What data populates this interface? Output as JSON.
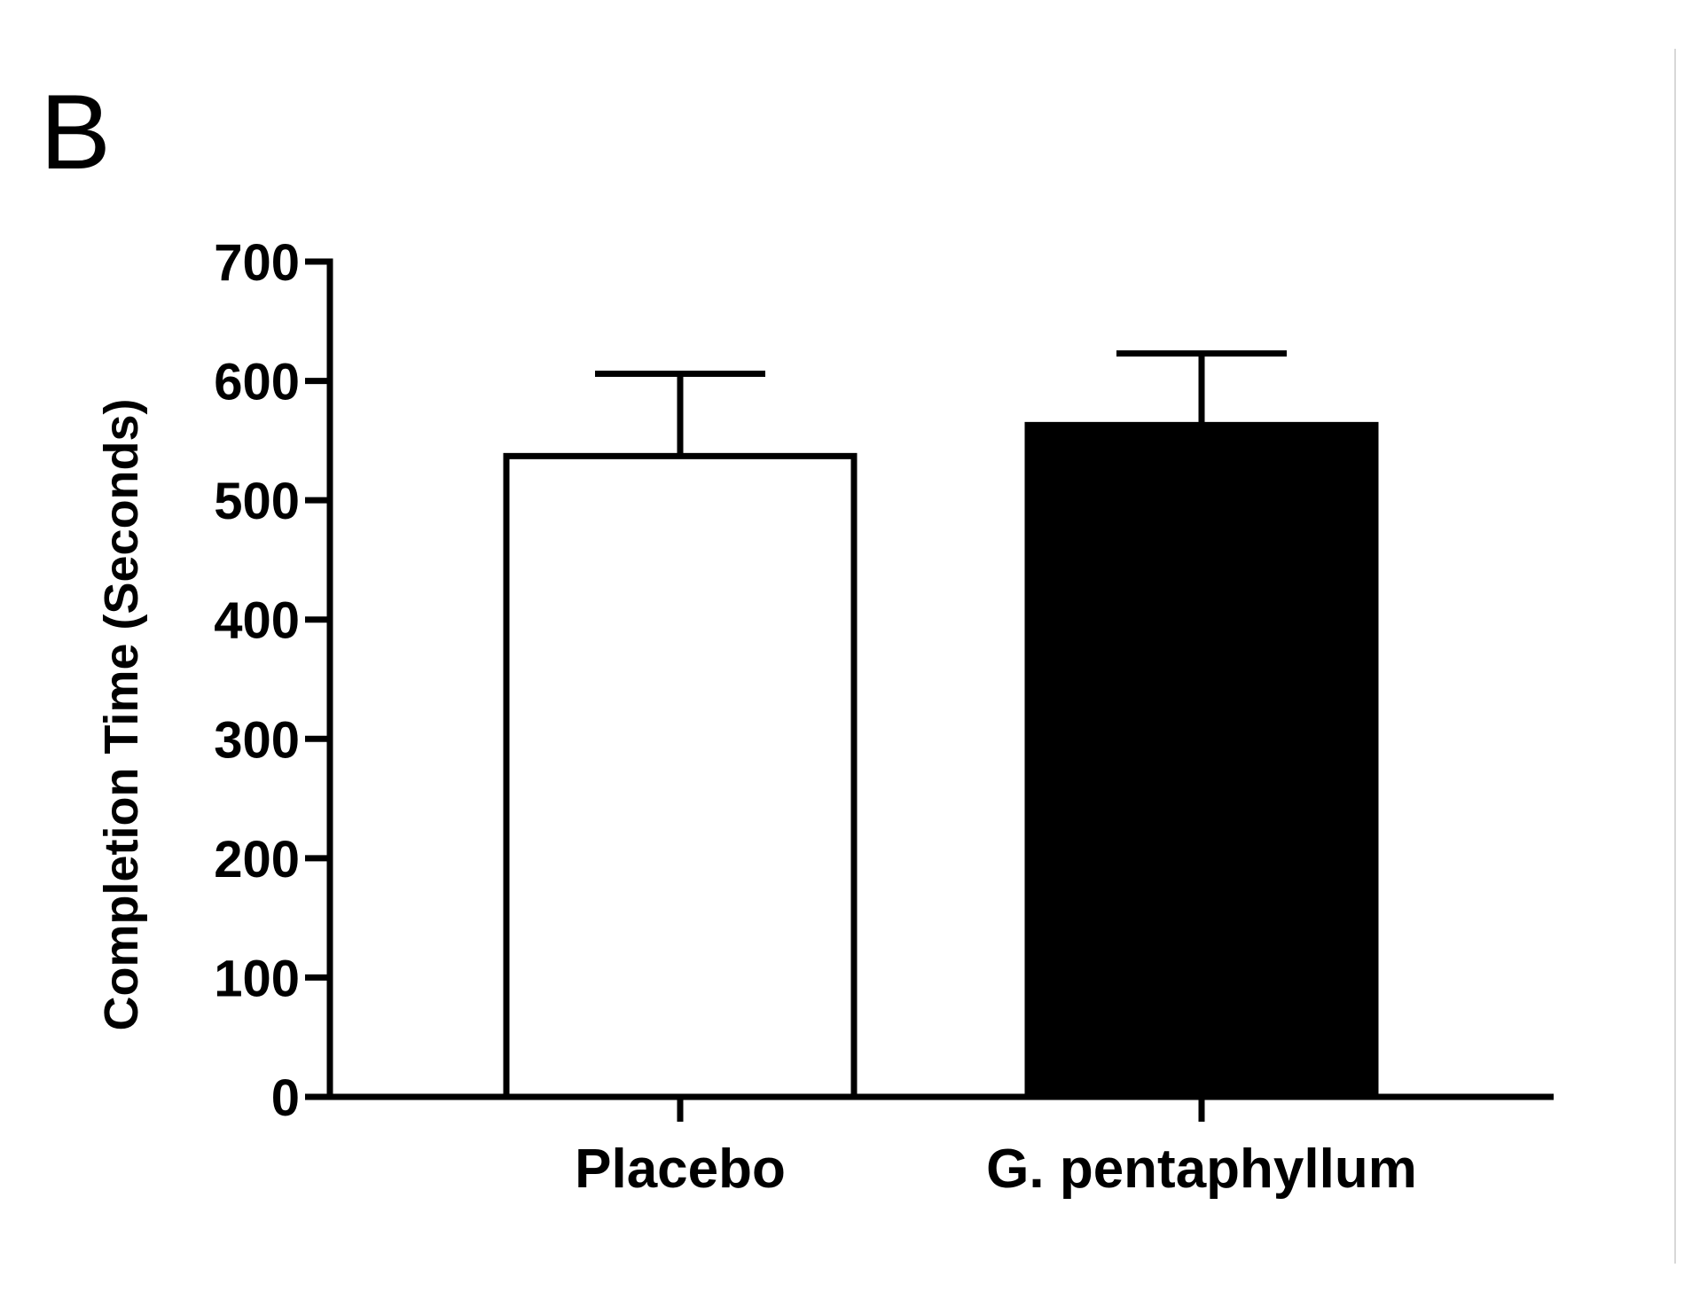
{
  "panel_label": "B",
  "chart_data": {
    "type": "bar",
    "categories": [
      "Placebo",
      "G. pentaphyllum"
    ],
    "values": [
      537,
      563
    ],
    "error_upper": [
      606,
      623
    ],
    "fills": [
      "#ffffff",
      "#000000"
    ],
    "ylabel": "Completion Time (Seconds)",
    "xlabel": "",
    "ylim": [
      0,
      700
    ],
    "yticks": [
      0,
      100,
      200,
      300,
      400,
      500,
      600,
      700
    ],
    "grid": false
  }
}
